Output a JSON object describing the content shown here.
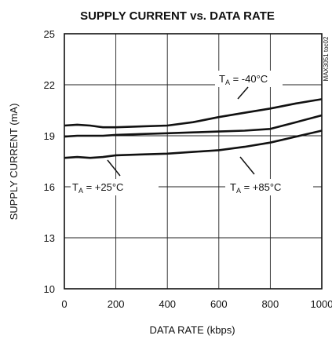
{
  "chart_data": {
    "type": "line",
    "title": "SUPPLY CURRENT vs. DATA RATE",
    "xlabel": "DATA RATE (kbps)",
    "ylabel": "SUPPLY CURRENT (mA)",
    "xlim": [
      0,
      1000
    ],
    "ylim": [
      10,
      25
    ],
    "x_ticks": [
      0,
      200,
      400,
      600,
      800,
      1000
    ],
    "y_ticks": [
      10,
      13,
      16,
      19,
      22,
      25
    ],
    "x_tick_labels": [
      "0",
      "200",
      "400",
      "600",
      "800",
      "1000"
    ],
    "y_tick_labels": [
      "10",
      "13",
      "16",
      "19",
      "22",
      "25"
    ],
    "grid": true,
    "figure_id": "MAX3051 toc02",
    "series": [
      {
        "name": "TA = -40°C",
        "x": [
          0,
          50,
          100,
          150,
          200,
          300,
          400,
          500,
          600,
          700,
          800,
          900,
          1000
        ],
        "y": [
          19.6,
          19.65,
          19.6,
          19.5,
          19.5,
          19.55,
          19.6,
          19.8,
          20.1,
          20.35,
          20.6,
          20.9,
          21.15
        ]
      },
      {
        "name": "TA = +25°C",
        "x": [
          0,
          50,
          100,
          150,
          200,
          300,
          400,
          500,
          600,
          700,
          800,
          900,
          1000
        ],
        "y": [
          18.95,
          19.0,
          19.0,
          19.0,
          19.05,
          19.1,
          19.15,
          19.2,
          19.25,
          19.3,
          19.4,
          19.8,
          20.2
        ]
      },
      {
        "name": "TA = +85°C",
        "x": [
          0,
          50,
          100,
          150,
          200,
          300,
          400,
          500,
          600,
          700,
          800,
          900,
          1000
        ],
        "y": [
          17.7,
          17.75,
          17.7,
          17.75,
          17.85,
          17.9,
          17.95,
          18.05,
          18.15,
          18.35,
          18.6,
          18.95,
          19.3
        ]
      }
    ],
    "annotations": [
      {
        "series": 0,
        "prefix": "T",
        "sub": "A",
        "value": " = -40°C"
      },
      {
        "series": 1,
        "prefix": "T",
        "sub": "A",
        "value": " = +25°C"
      },
      {
        "series": 2,
        "prefix": "T",
        "sub": "A",
        "value": " = +85°C"
      }
    ],
    "colors": {
      "line": "#111111",
      "grid": "#222222"
    }
  }
}
